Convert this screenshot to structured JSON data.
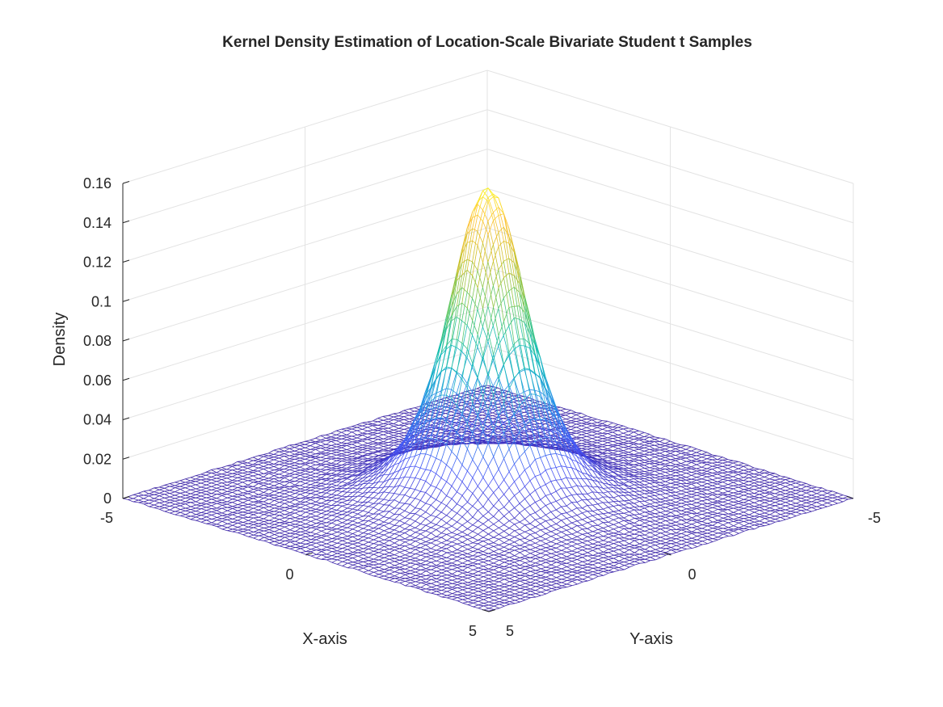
{
  "chart_data": {
    "type": "surface-mesh",
    "title": "Kernel Density Estimation of Location-Scale Bivariate Student t Samples",
    "xlabel": "X-axis",
    "ylabel": "Y-axis",
    "zlabel": "Density",
    "xlim": [
      -5,
      5
    ],
    "ylim": [
      -5,
      5
    ],
    "zlim": [
      0,
      0.16
    ],
    "x_ticks": [
      "-5",
      "0",
      "5"
    ],
    "y_ticks": [
      "-5",
      "0",
      "5"
    ],
    "z_ticks": [
      "0",
      "0.02",
      "0.04",
      "0.06",
      "0.08",
      "0.1",
      "0.12",
      "0.14",
      "0.16"
    ],
    "peak": {
      "x": 0,
      "y": 0,
      "density": 0.158
    },
    "grid": true,
    "colormap": "parula",
    "colormap_low": "#3e26a8",
    "colormap_high": "#f9fb15"
  }
}
